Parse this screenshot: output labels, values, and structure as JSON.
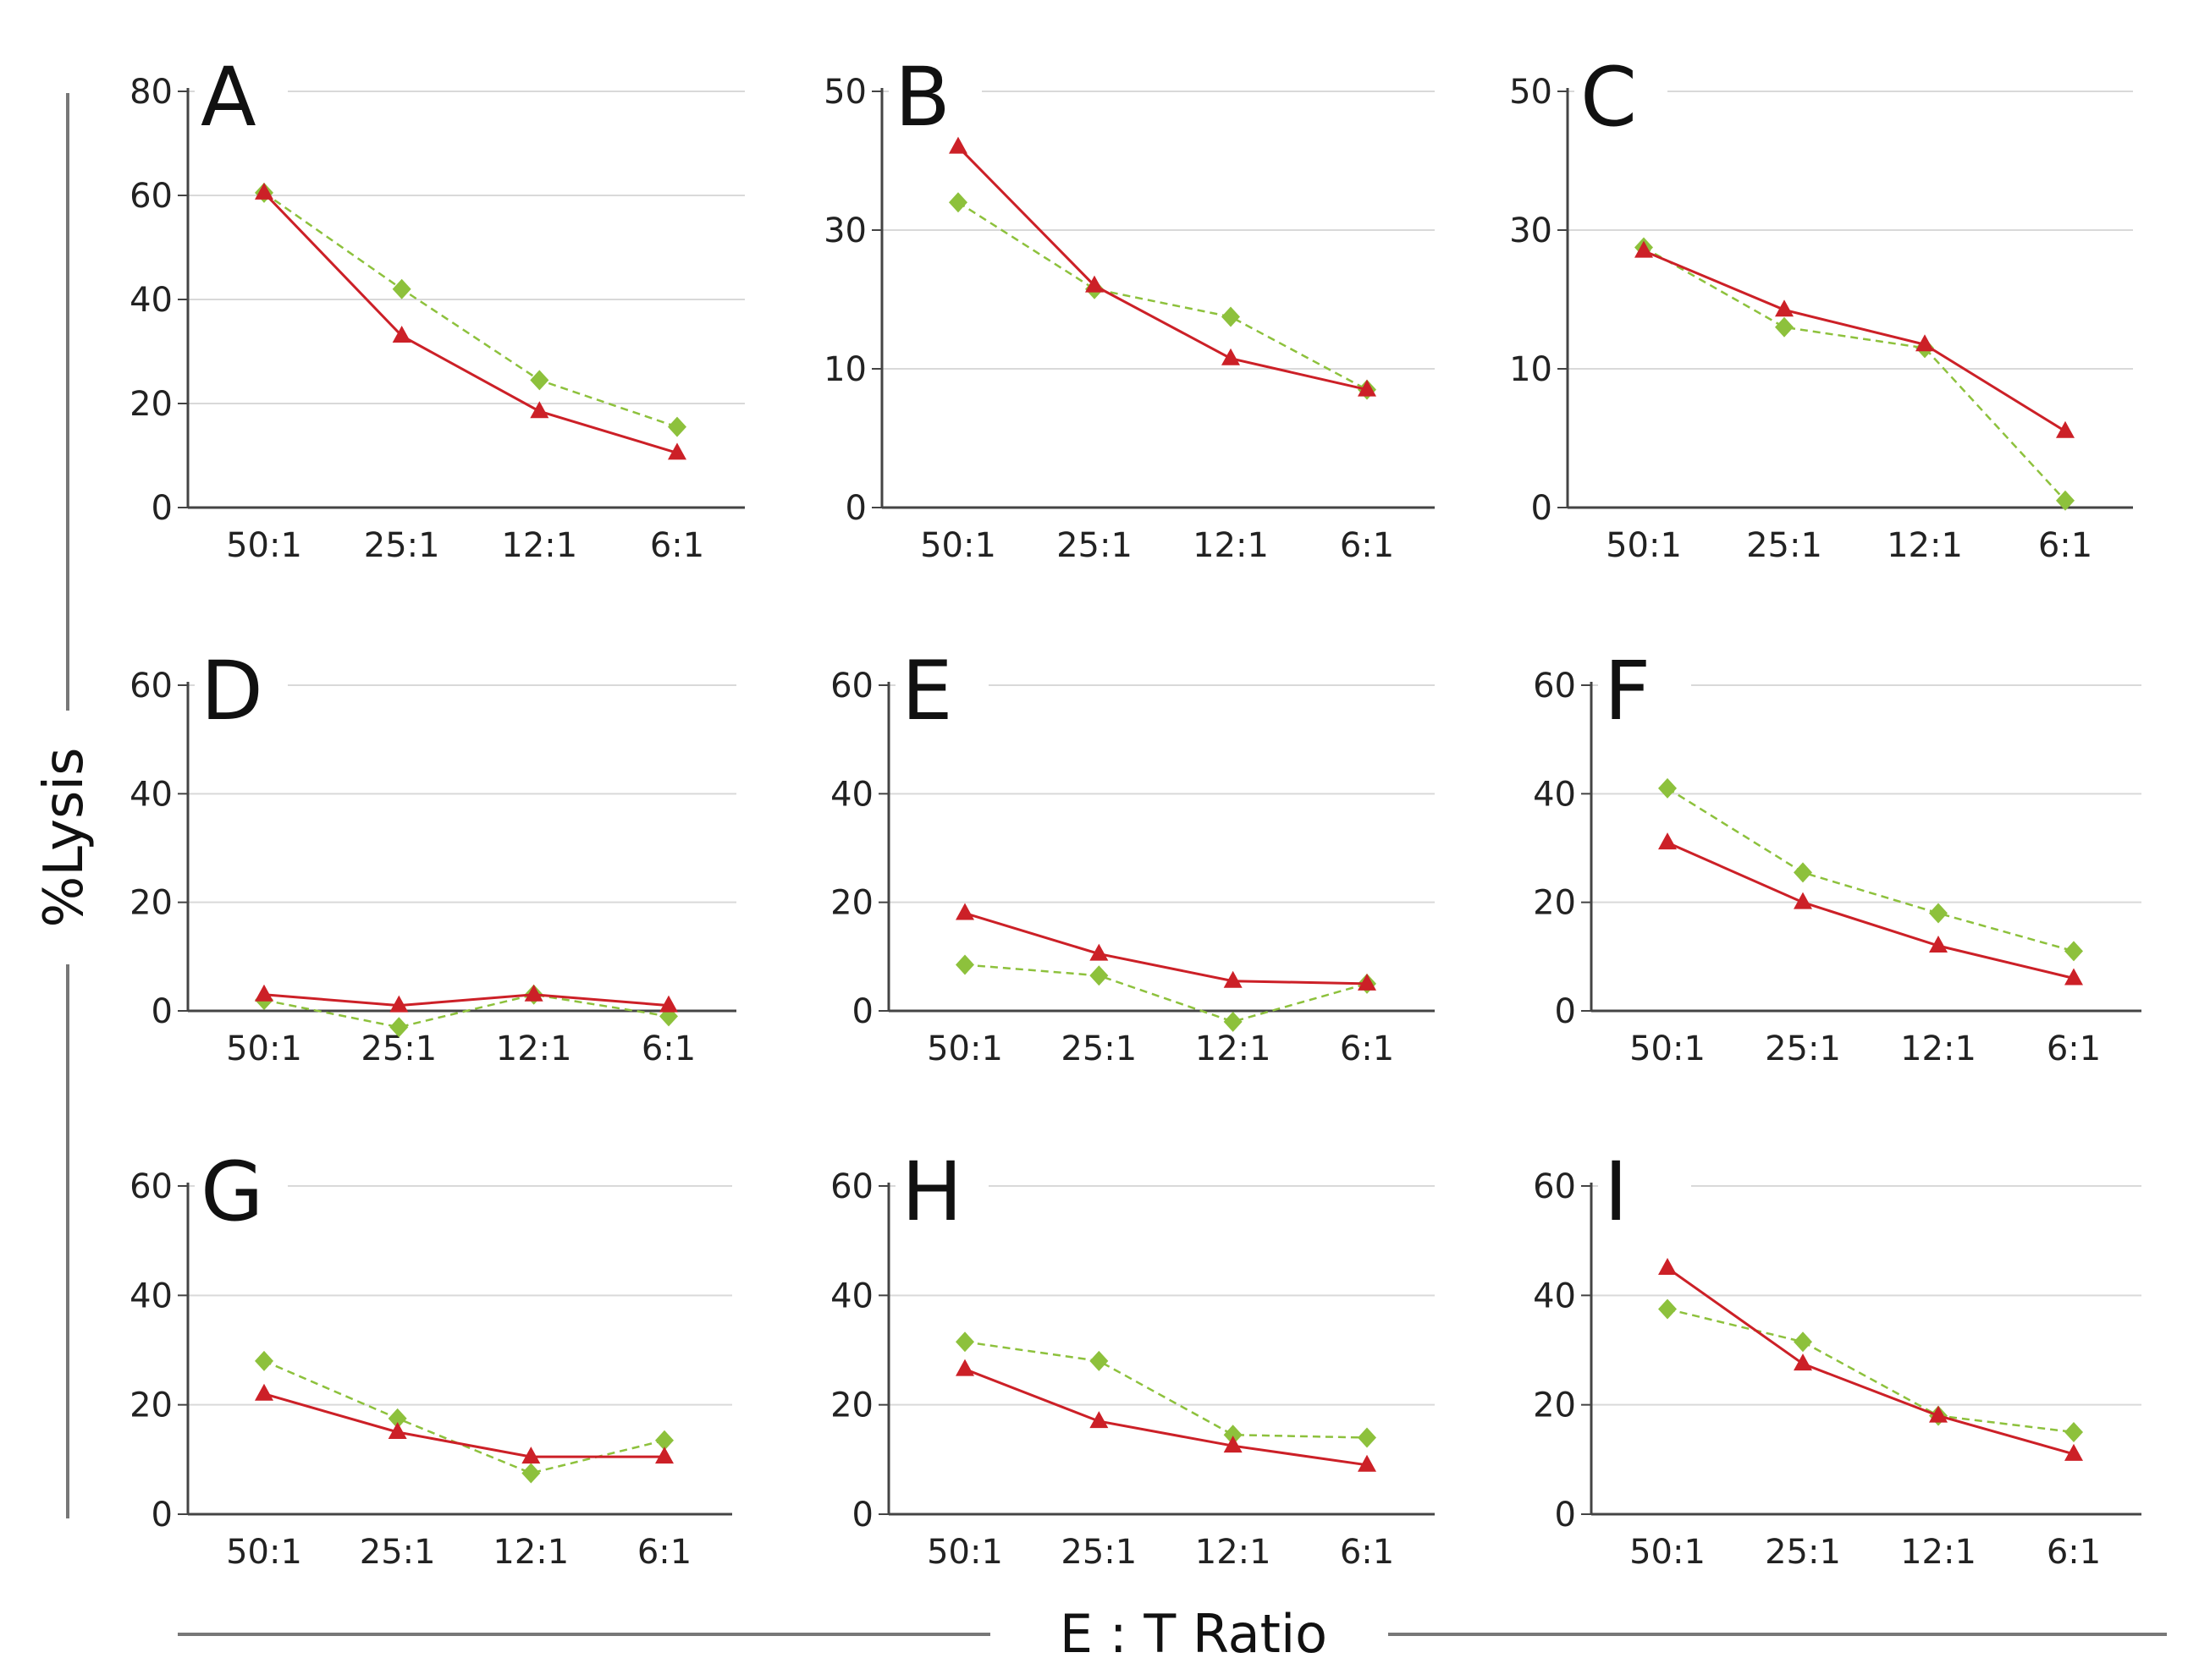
{
  "figure": {
    "y_axis_label": "%Lysis",
    "x_axis_label": "E : T Ratio"
  },
  "colors": {
    "red": "#cc2027",
    "green": "#8dc13c",
    "grid": "#d9d9d9",
    "axis": "#444444"
  },
  "chart_data": [
    {
      "panel": "A",
      "type": "line",
      "categories": [
        "50:1",
        "25:1",
        "12:1",
        "6:1"
      ],
      "yticks": [
        0,
        20,
        40,
        60,
        80
      ],
      "ylim": [
        0,
        80
      ],
      "series": [
        {
          "name": "red-triangle",
          "style": "solid",
          "values": [
            60.5,
            33,
            18.5,
            10.5
          ]
        },
        {
          "name": "green-diamond",
          "style": "dashed",
          "values": [
            60.5,
            42,
            24.5,
            15.5
          ]
        }
      ]
    },
    {
      "panel": "B",
      "type": "line",
      "categories": [
        "50:1",
        "25:1",
        "12:1",
        "6:1"
      ],
      "yticks": [
        0,
        10,
        30,
        50
      ],
      "ylim": [
        0,
        50
      ],
      "series": [
        {
          "name": "red-triangle",
          "style": "solid",
          "values": [
            42,
            22,
            11.5,
            8.5
          ]
        },
        {
          "name": "green-diamond",
          "style": "dashed",
          "values": [
            34,
            21.5,
            17.5,
            8.5
          ]
        }
      ]
    },
    {
      "panel": "C",
      "type": "line",
      "categories": [
        "50:1",
        "25:1",
        "12:1",
        "6:1"
      ],
      "yticks": [
        0,
        10,
        30,
        50
      ],
      "ylim": [
        0,
        50
      ],
      "series": [
        {
          "name": "red-triangle",
          "style": "solid",
          "values": [
            27,
            18.5,
            13.5,
            5.5
          ]
        },
        {
          "name": "green-diamond",
          "style": "dashed",
          "values": [
            27.5,
            16,
            13,
            0.5
          ]
        }
      ]
    },
    {
      "panel": "D",
      "type": "line",
      "categories": [
        "50:1",
        "25:1",
        "12:1",
        "6:1"
      ],
      "yticks": [
        0,
        20,
        40,
        60
      ],
      "ylim": [
        0,
        60
      ],
      "series": [
        {
          "name": "red-triangle",
          "style": "solid",
          "values": [
            3,
            1,
            3,
            1
          ]
        },
        {
          "name": "green-diamond",
          "style": "dashed",
          "values": [
            2,
            -3,
            3,
            -1
          ]
        }
      ]
    },
    {
      "panel": "E",
      "type": "line",
      "categories": [
        "50:1",
        "25:1",
        "12:1",
        "6:1"
      ],
      "yticks": [
        0,
        20,
        40,
        60
      ],
      "ylim": [
        0,
        60
      ],
      "series": [
        {
          "name": "red-triangle",
          "style": "solid",
          "values": [
            18,
            10.5,
            5.5,
            5
          ]
        },
        {
          "name": "green-diamond",
          "style": "dashed",
          "values": [
            8.5,
            6.5,
            -2,
            5
          ]
        }
      ]
    },
    {
      "panel": "F",
      "type": "line",
      "categories": [
        "50:1",
        "25:1",
        "12:1",
        "6:1"
      ],
      "yticks": [
        0,
        20,
        40,
        60
      ],
      "ylim": [
        0,
        60
      ],
      "series": [
        {
          "name": "red-triangle",
          "style": "solid",
          "values": [
            31,
            20,
            12,
            6
          ]
        },
        {
          "name": "green-diamond",
          "style": "dashed",
          "values": [
            41,
            25.5,
            18,
            11
          ]
        }
      ]
    },
    {
      "panel": "G",
      "type": "line",
      "categories": [
        "50:1",
        "25:1",
        "12:1",
        "6:1"
      ],
      "yticks": [
        0,
        20,
        40,
        60
      ],
      "ylim": [
        0,
        60
      ],
      "series": [
        {
          "name": "red-triangle",
          "style": "solid",
          "values": [
            22,
            15,
            10.5,
            10.5
          ]
        },
        {
          "name": "green-diamond",
          "style": "dashed",
          "values": [
            28,
            17.5,
            7.5,
            13.5
          ]
        }
      ]
    },
    {
      "panel": "H",
      "type": "line",
      "categories": [
        "50:1",
        "25:1",
        "12:1",
        "6:1"
      ],
      "yticks": [
        0,
        20,
        40,
        60
      ],
      "ylim": [
        0,
        60
      ],
      "series": [
        {
          "name": "red-triangle",
          "style": "solid",
          "values": [
            26.5,
            17,
            12.5,
            9
          ]
        },
        {
          "name": "green-diamond",
          "style": "dashed",
          "values": [
            31.5,
            28,
            14.5,
            14
          ]
        }
      ]
    },
    {
      "panel": "I",
      "type": "line",
      "categories": [
        "50:1",
        "25:1",
        "12:1",
        "6:1"
      ],
      "yticks": [
        0,
        20,
        40,
        60
      ],
      "ylim": [
        0,
        60
      ],
      "series": [
        {
          "name": "red-triangle",
          "style": "solid",
          "values": [
            45,
            27.5,
            18,
            11
          ]
        },
        {
          "name": "green-diamond",
          "style": "dashed",
          "values": [
            37.5,
            31.5,
            18,
            15
          ]
        }
      ]
    }
  ]
}
